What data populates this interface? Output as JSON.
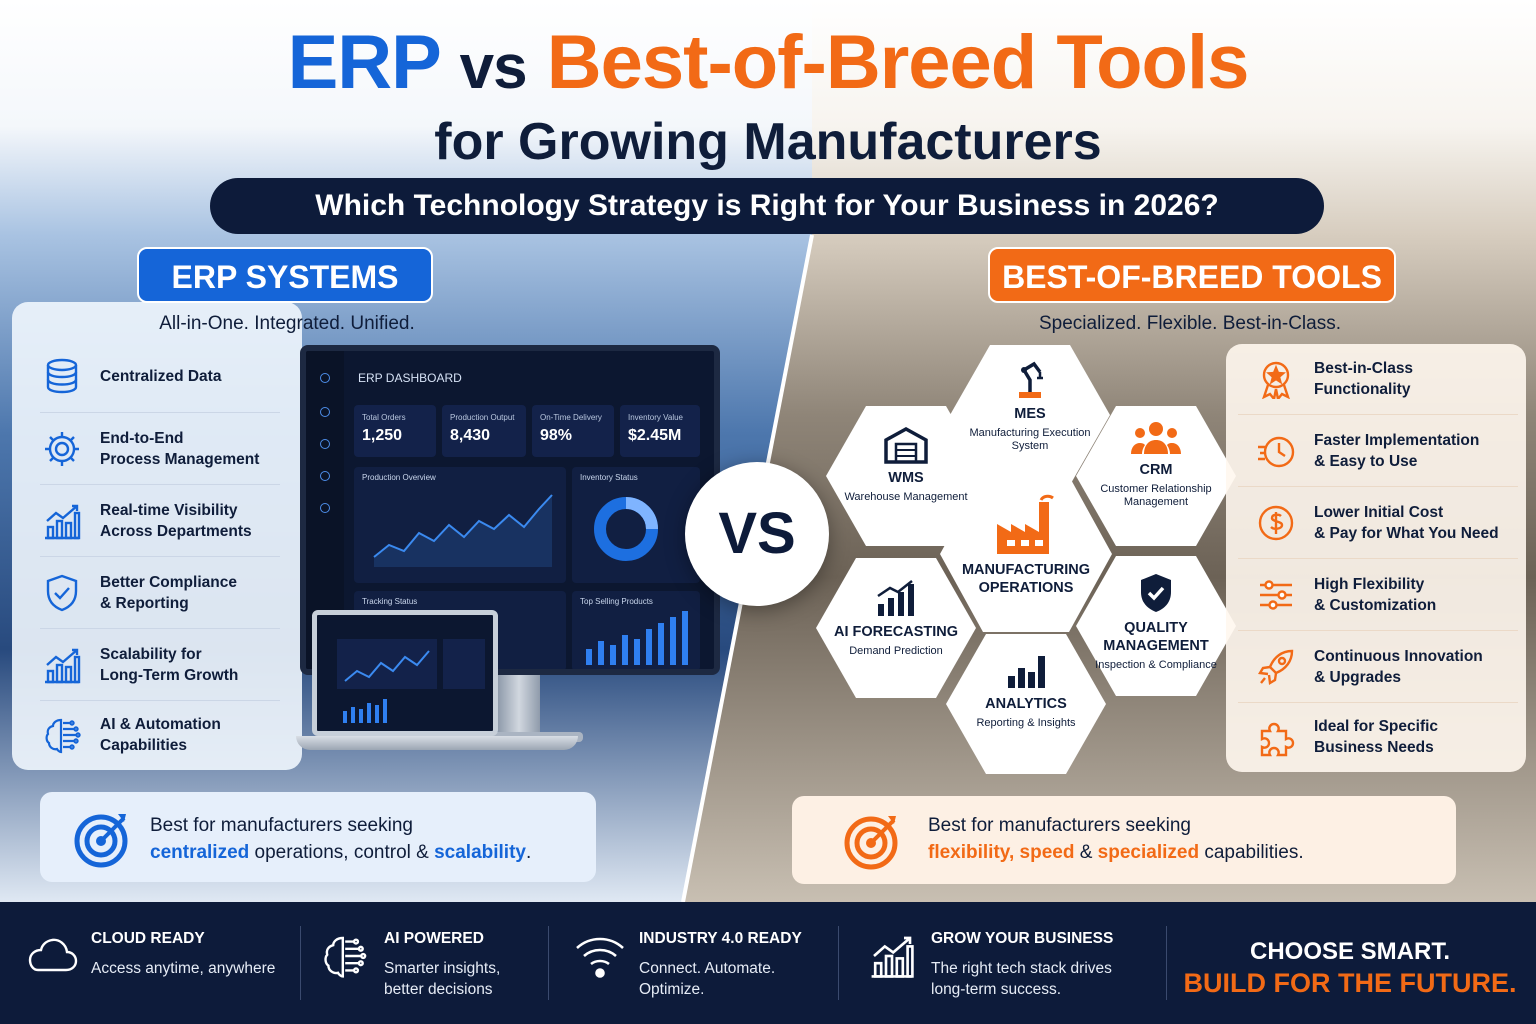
{
  "title": {
    "erp": "ERP",
    "vs": "vs",
    "bob": "Best-of-Breed Tools",
    "line2": "for Growing Manufacturers",
    "question": "Which Technology Strategy is Right for Your Business in 2026?"
  },
  "erp": {
    "header": "ERP SYSTEMS",
    "tagline": "All-in-One. Integrated. Unified.",
    "features": [
      {
        "icon": "database-icon",
        "line1": "Centralized Data",
        "line2": ""
      },
      {
        "icon": "gear-icon",
        "line1": "End-to-End",
        "line2": "Process Management"
      },
      {
        "icon": "growth-chart-icon",
        "line1": "Real-time Visibility",
        "line2": "Across Departments"
      },
      {
        "icon": "shield-check-icon",
        "line1": "Better Compliance",
        "line2": "& Reporting"
      },
      {
        "icon": "growth-chart-icon",
        "line1": "Scalability for",
        "line2": "Long-Term Growth"
      },
      {
        "icon": "ai-brain-icon",
        "line1": "AI & Automation",
        "line2": "Capabilities"
      }
    ],
    "best_for": {
      "line1": "Best for manufacturers seeking",
      "hl1": "centralized",
      "mid": " operations, control & ",
      "hl2": "scalability",
      "end": "."
    }
  },
  "dashboard": {
    "title": "ERP DASHBOARD",
    "kpis": [
      {
        "label": "Total Orders",
        "value": "1,250"
      },
      {
        "label": "Production Output",
        "value": "8,430"
      },
      {
        "label": "On-Time Delivery",
        "value": "98%"
      },
      {
        "label": "Inventory Value",
        "value": "$2.45M"
      }
    ],
    "cards": {
      "production": "Production Overview",
      "inventory": "Inventory Status",
      "tracking": "Tracking Status",
      "top": "Top Selling Products"
    }
  },
  "vs_label": "VS",
  "bob": {
    "header": "BEST-OF-BREED TOOLS",
    "tagline": "Specialized. Flexible. Best-in-Class.",
    "hexes": {
      "mes": {
        "title": "MES",
        "sub": "Manufacturing Execution System"
      },
      "wms": {
        "title": "WMS",
        "sub": "Warehouse Management"
      },
      "crm": {
        "title": "CRM",
        "sub": "Customer Relationship Management"
      },
      "center": {
        "title": "MANUFACTURING OPERATIONS"
      },
      "ai": {
        "title": "AI FORECASTING",
        "sub": "Demand Prediction"
      },
      "quality": {
        "title": "QUALITY MANAGEMENT",
        "sub": "Inspection & Compliance"
      },
      "analytics": {
        "title": "ANALYTICS",
        "sub": "Reporting & Insights"
      }
    },
    "features": [
      {
        "icon": "award-badge-icon",
        "line1": "Best-in-Class",
        "line2": "Functionality"
      },
      {
        "icon": "fast-clock-icon",
        "line1": "Faster Implementation",
        "line2": "& Easy to Use"
      },
      {
        "icon": "dollar-coin-icon",
        "line1": "Lower Initial Cost",
        "line2": "& Pay for What You Need"
      },
      {
        "icon": "sliders-icon",
        "line1": "High Flexibility",
        "line2": "& Customization"
      },
      {
        "icon": "rocket-icon",
        "line1": "Continuous Innovation",
        "line2": "& Upgrades"
      },
      {
        "icon": "puzzle-icon",
        "line1": "Ideal for Specific",
        "line2": "Business Needs"
      }
    ],
    "best_for": {
      "line1": "Best for manufacturers seeking",
      "hl1": "flexibility",
      "sep1": ", ",
      "hl2": "speed",
      "sep2": " & ",
      "hl3": "specialized",
      "end": " capabilities."
    }
  },
  "footer": {
    "items": [
      {
        "icon": "cloud-icon",
        "title": "CLOUD READY",
        "line1": "Access anytime, anywhere",
        "line2": ""
      },
      {
        "icon": "ai-brain-icon",
        "title": "AI POWERED",
        "line1": "Smarter insights,",
        "line2": "better decisions"
      },
      {
        "icon": "wifi-icon",
        "title": "INDUSTRY 4.0 READY",
        "line1": "Connect. Automate.",
        "line2": "Optimize."
      },
      {
        "icon": "growth-chart-icon",
        "title": "GROW YOUR BUSINESS",
        "line1": "The right tech stack drives",
        "line2": "long-term success."
      }
    ],
    "cta1": "CHOOSE SMART.",
    "cta2": "BUILD FOR THE FUTURE."
  },
  "colors": {
    "blue": "#1565d8",
    "orange": "#f26a16",
    "navy": "#0d1b3a"
  }
}
